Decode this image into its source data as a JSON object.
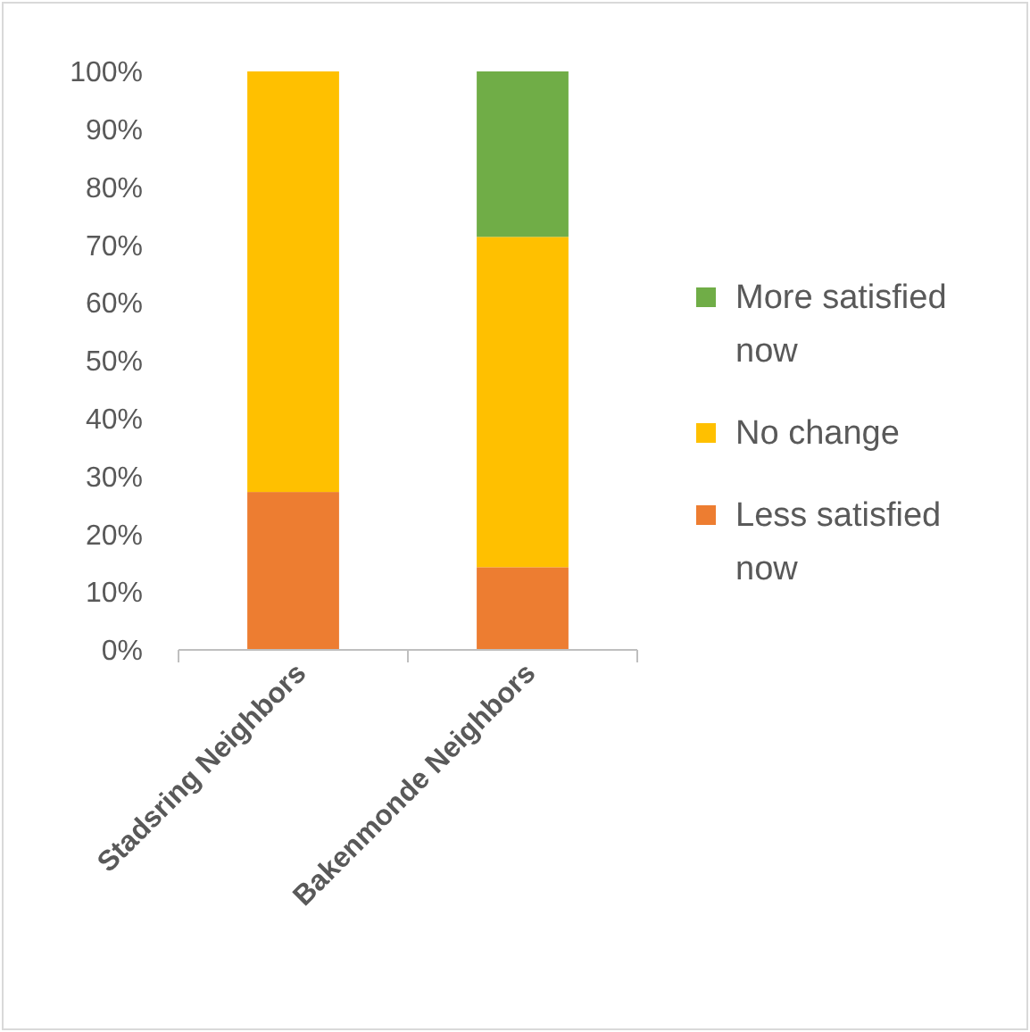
{
  "chart_data": {
    "type": "bar",
    "stacked": true,
    "categories": [
      "Stadsring Neighbors",
      "Bakenmonde Neighbors"
    ],
    "series": [
      {
        "name": "Less satisfied now",
        "color": "#ed7d31",
        "values": [
          27.3,
          14.3
        ]
      },
      {
        "name": "No change",
        "color": "#ffc000",
        "values": [
          72.7,
          57.1
        ]
      },
      {
        "name": "More satisfied now",
        "color": "#70ad47",
        "values": [
          0,
          28.6
        ]
      }
    ],
    "ylim": [
      0,
      100
    ],
    "yticks": [
      {
        "value": 0,
        "label": "0%"
      },
      {
        "value": 10,
        "label": "10%"
      },
      {
        "value": 20,
        "label": "20%"
      },
      {
        "value": 30,
        "label": "30%"
      },
      {
        "value": 40,
        "label": "40%"
      },
      {
        "value": 50,
        "label": "50%"
      },
      {
        "value": 60,
        "label": "60%"
      },
      {
        "value": 70,
        "label": "70%"
      },
      {
        "value": 80,
        "label": "80%"
      },
      {
        "value": 90,
        "label": "90%"
      },
      {
        "value": 100,
        "label": "100%"
      }
    ],
    "legend": "right"
  }
}
